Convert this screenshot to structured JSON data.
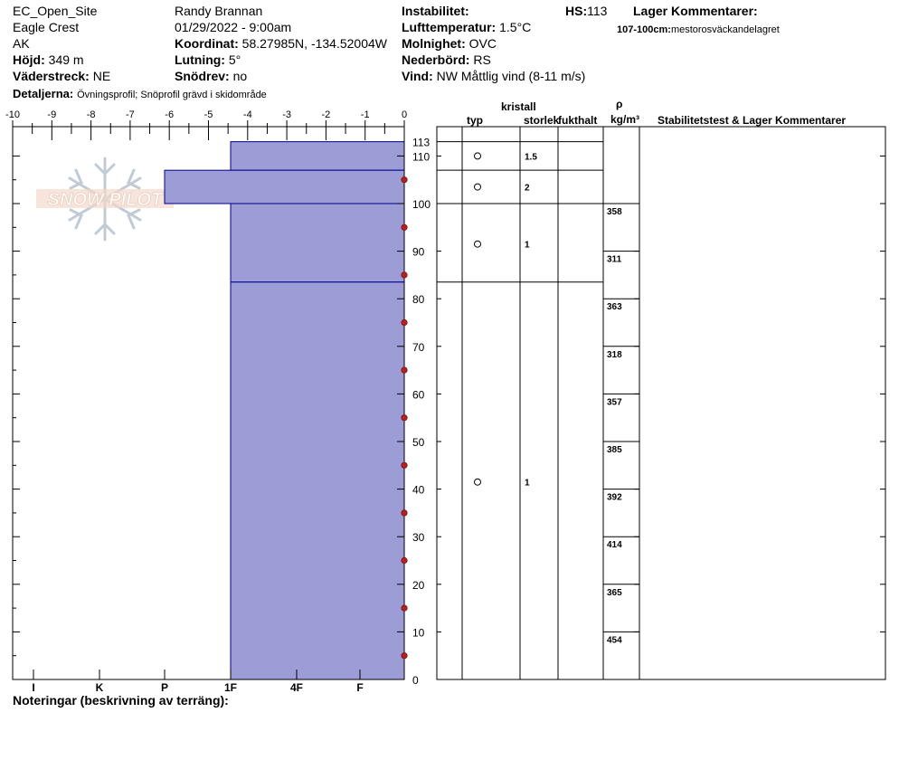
{
  "header": {
    "site": "EC_Open_Site",
    "area": "Eagle Crest",
    "state": "AK",
    "elevation_label": "Höjd:",
    "elevation_value": "349 m",
    "aspect_label": "Väderstreck:",
    "aspect_value": "NE",
    "details_label": "Detaljerna:",
    "details_value": "Övningsprofil;  Snöprofil grävd i skidområde",
    "observer": "Randy Brannan",
    "datetime": "01/29/2022 - 9:00am",
    "coord_label": "Koordinat:",
    "coord_value": "58.27985N, -134.52004W",
    "slope_label": "Lutning:",
    "slope_value": "5°",
    "drift_label": "Snödrev:",
    "drift_value": "no",
    "instability_label": "Instabilitet:",
    "airtemp_label": "Lufttemperatur:",
    "airtemp_value": "1.5°C",
    "sky_label": "Molnighet:",
    "sky_value": "OVC",
    "precip_label": "Nederbörd:",
    "precip_value": "RS",
    "wind_label": "Vind:",
    "wind_value": "NW Måttlig vind (8-11 m/s)",
    "hs_label": "HS:",
    "hs_value": "113",
    "layer_comments_label": "Lager Kommentarer:",
    "layer_comment_range": "107-100cm:",
    "layer_comment_text": "mestorosväckandelagret"
  },
  "logo_text": "SNOW PILOT",
  "table_headers": {
    "crystal": "kristall",
    "type": "typ",
    "size": "storlek",
    "moisture": "fukthalt",
    "rho": "ρ",
    "density_unit": "kg/m³",
    "stability": "Stabilitetstest & Lager Kommentarer"
  },
  "notes_label": "Noteringar (beskrivning av terräng):",
  "colors": {
    "hardness_fill": "#9c9cd6",
    "hardness_stroke": "#00008b",
    "temp_marker": "#b22222"
  },
  "chart_data": {
    "type": "snow-profile",
    "temperature_axis": {
      "ticks": [
        "-10",
        "-9",
        "-8",
        "-7",
        "-6",
        "-5",
        "-4",
        "-3",
        "-2",
        "-1",
        "0"
      ],
      "range": [
        -10,
        0
      ]
    },
    "height_axis": {
      "ticks": [
        "113",
        "110",
        "100",
        "90",
        "80",
        "70",
        "60",
        "50",
        "40",
        "30",
        "20",
        "10",
        "0"
      ],
      "range": [
        0,
        113
      ]
    },
    "hardness_axis": {
      "ticks": [
        "I",
        "K",
        "P",
        "1F",
        "4F",
        "F"
      ]
    },
    "hardness_layers": [
      {
        "top": 113,
        "bottom": 107,
        "hardness": "1F"
      },
      {
        "top": 107,
        "bottom": 100,
        "hardness": "P+"
      },
      {
        "top": 100,
        "bottom": 83.5,
        "hardness": "1F"
      },
      {
        "top": 83.5,
        "bottom": 0,
        "hardness": "1F"
      }
    ],
    "snow_temperatures": [
      {
        "height": 105,
        "temp": 0
      },
      {
        "height": 95,
        "temp": 0
      },
      {
        "height": 85,
        "temp": 0
      },
      {
        "height": 75,
        "temp": 0
      },
      {
        "height": 65,
        "temp": 0
      },
      {
        "height": 55,
        "temp": 0
      },
      {
        "height": 45,
        "temp": 0
      },
      {
        "height": 35,
        "temp": 0
      },
      {
        "height": 25,
        "temp": 0
      },
      {
        "height": 15,
        "temp": 0
      },
      {
        "height": 5,
        "temp": 0
      }
    ],
    "crystals": [
      {
        "height": 110,
        "size": "1.5"
      },
      {
        "height": 103.5,
        "size": "2"
      },
      {
        "height": 91.5,
        "size": "1"
      },
      {
        "height": 41.5,
        "size": "1"
      }
    ],
    "densities": [
      {
        "top": 100,
        "bottom": 90,
        "value": "358"
      },
      {
        "top": 90,
        "bottom": 80,
        "value": "311"
      },
      {
        "top": 80,
        "bottom": 70,
        "value": "363"
      },
      {
        "top": 70,
        "bottom": 60,
        "value": "318"
      },
      {
        "top": 60,
        "bottom": 50,
        "value": "357"
      },
      {
        "top": 50,
        "bottom": 40,
        "value": "385"
      },
      {
        "top": 40,
        "bottom": 30,
        "value": "392"
      },
      {
        "top": 30,
        "bottom": 20,
        "value": "414"
      },
      {
        "top": 20,
        "bottom": 10,
        "value": "365"
      },
      {
        "top": 10,
        "bottom": 0,
        "value": "454"
      }
    ]
  }
}
